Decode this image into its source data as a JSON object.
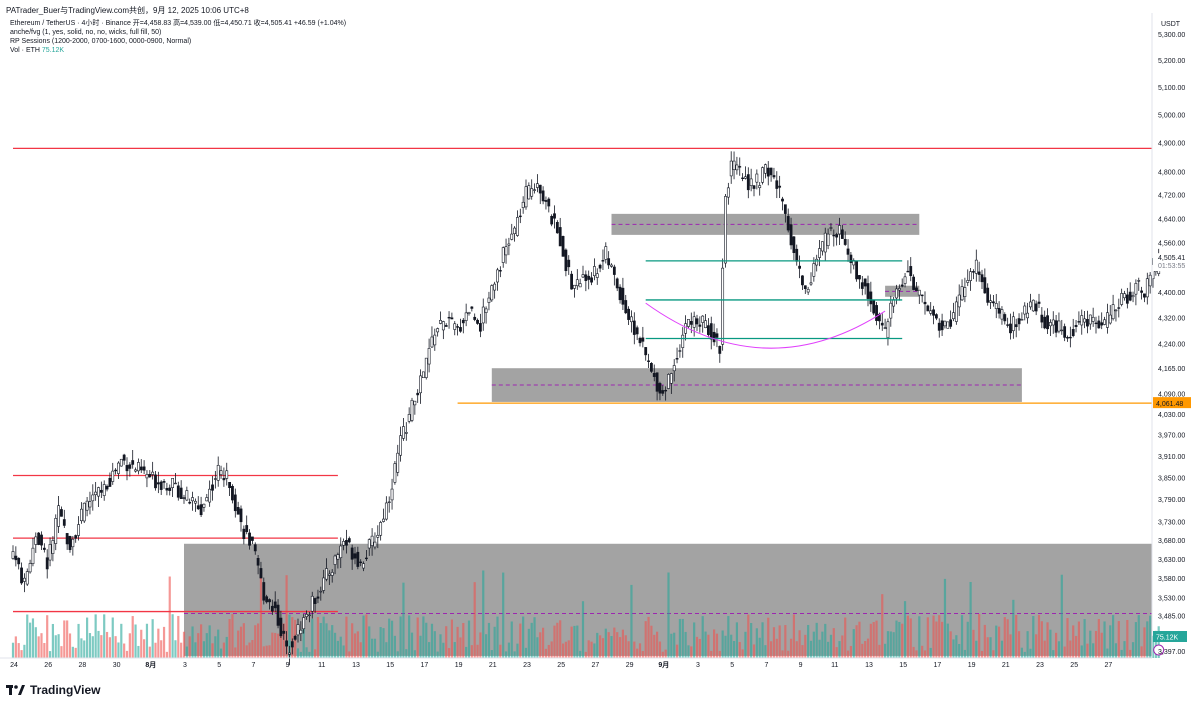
{
  "header": {
    "title": "PATrader_Buer与TradingView.com共创，9月 12, 2025 10:06 UTC+8"
  },
  "legend": {
    "symbol_line": "Ethereum / TetherUS · 4小时 · Binance  开=4,458.83  高=4,539.00  低=4,450.71  收=4,505.41  +46.59 (+1.04%)",
    "indicator1": "anche/fvg (1, yes, solid, no, no, wicks, full fill, 50)",
    "indicator2": "RP Sessions (1200-2000, 0700-1600, 0000-0900, Normal)",
    "volume_label": "Vol · ETH",
    "volume_value": "75.12K"
  },
  "axis": {
    "currency": "USDT",
    "price_ticks": [
      "5,300.00",
      "5,200.00",
      "5,100.00",
      "5,000.00",
      "4,900.00",
      "4,800.00",
      "4,720.00",
      "4,640.00",
      "4,560.00",
      "4,400.00",
      "4,320.00",
      "4,240.00",
      "4,165.00",
      "4,090.00",
      "4,030.00",
      "3,970.00",
      "3,910.00",
      "3,850.00",
      "3,790.00",
      "3,730.00",
      "3,680.00",
      "3,630.00",
      "3,580.00",
      "3,530.00",
      "3,485.00",
      "3,441.00",
      "3,397.00"
    ],
    "last_price": "4,505.41",
    "countdown": "01:53:55",
    "level_label": "4,061.48",
    "volume_badge": "75.12K",
    "date_ticks": [
      "24",
      "26",
      "28",
      "30",
      "8月",
      "3",
      "5",
      "7",
      "9",
      "11",
      "13",
      "15",
      "17",
      "19",
      "21",
      "23",
      "25",
      "27",
      "29",
      "9月",
      "3",
      "5",
      "7",
      "9",
      "11",
      "13",
      "15",
      "17",
      "19",
      "21",
      "23",
      "25",
      "27"
    ]
  },
  "footer": {
    "brand": "TradingView"
  },
  "colors": {
    "up": "#26a69a",
    "down": "#ef5350",
    "zone": "#9e9e9e",
    "resistance": "#f23645",
    "support": "#ff9800",
    "arc": "#e040fb",
    "range": "#089981",
    "mid_dash": "#9c27b0"
  },
  "chart_data": {
    "type": "candlestick",
    "x_unit": "4h candles",
    "x_start": "2025-07-23",
    "y_scale": "log",
    "ylim": [
      3380,
      5380
    ],
    "close_path": [
      [
        0,
        3650
      ],
      [
        4,
        3560
      ],
      [
        8,
        3700
      ],
      [
        12,
        3620
      ],
      [
        16,
        3750
      ],
      [
        20,
        3670
      ],
      [
        26,
        3780
      ],
      [
        32,
        3820
      ],
      [
        38,
        3900
      ],
      [
        44,
        3870
      ],
      [
        50,
        3840
      ],
      [
        56,
        3830
      ],
      [
        60,
        3800
      ],
      [
        66,
        3760
      ],
      [
        72,
        3870
      ],
      [
        76,
        3840
      ],
      [
        80,
        3720
      ],
      [
        84,
        3660
      ],
      [
        88,
        3540
      ],
      [
        92,
        3500
      ],
      [
        96,
        3400
      ],
      [
        100,
        3450
      ],
      [
        104,
        3500
      ],
      [
        108,
        3560
      ],
      [
        112,
        3610
      ],
      [
        116,
        3680
      ],
      [
        122,
        3620
      ],
      [
        128,
        3700
      ],
      [
        132,
        3800
      ],
      [
        136,
        3950
      ],
      [
        140,
        4050
      ],
      [
        144,
        4150
      ],
      [
        148,
        4280
      ],
      [
        152,
        4310
      ],
      [
        156,
        4280
      ],
      [
        160,
        4350
      ],
      [
        164,
        4300
      ],
      [
        168,
        4420
      ],
      [
        172,
        4520
      ],
      [
        176,
        4600
      ],
      [
        180,
        4720
      ],
      [
        184,
        4770
      ],
      [
        188,
        4660
      ],
      [
        192,
        4570
      ],
      [
        196,
        4420
      ],
      [
        200,
        4440
      ],
      [
        204,
        4460
      ],
      [
        208,
        4520
      ],
      [
        212,
        4420
      ],
      [
        216,
        4320
      ],
      [
        220,
        4250
      ],
      [
        224,
        4150
      ],
      [
        228,
        4090
      ],
      [
        232,
        4180
      ],
      [
        236,
        4300
      ],
      [
        240,
        4310
      ],
      [
        244,
        4290
      ],
      [
        248,
        4230
      ],
      [
        250,
        4720
      ],
      [
        252,
        4820
      ],
      [
        256,
        4780
      ],
      [
        260,
        4750
      ],
      [
        264,
        4800
      ],
      [
        266,
        4790
      ],
      [
        270,
        4700
      ],
      [
        274,
        4530
      ],
      [
        278,
        4400
      ],
      [
        282,
        4500
      ],
      [
        286,
        4590
      ],
      [
        290,
        4610
      ],
      [
        294,
        4500
      ],
      [
        298,
        4430
      ],
      [
        302,
        4350
      ],
      [
        306,
        4270
      ],
      [
        310,
        4410
      ],
      [
        314,
        4470
      ],
      [
        318,
        4380
      ],
      [
        322,
        4340
      ],
      [
        326,
        4290
      ],
      [
        330,
        4320
      ],
      [
        334,
        4430
      ],
      [
        338,
        4480
      ],
      [
        342,
        4380
      ],
      [
        346,
        4330
      ],
      [
        350,
        4290
      ],
      [
        354,
        4320
      ],
      [
        358,
        4370
      ],
      [
        362,
        4310
      ],
      [
        366,
        4290
      ],
      [
        370,
        4270
      ],
      [
        374,
        4300
      ],
      [
        378,
        4320
      ],
      [
        382,
        4290
      ],
      [
        386,
        4340
      ],
      [
        390,
        4380
      ],
      [
        394,
        4420
      ],
      [
        397,
        4400
      ],
      [
        400,
        4480
      ],
      [
        402,
        4505.41
      ]
    ],
    "last_candle": {
      "open": 4458.83,
      "high": 4539.0,
      "low": 4450.71,
      "close": 4505.41,
      "change": 46.59,
      "change_pct": 1.04
    },
    "horizontal_levels": [
      {
        "price": 4880,
        "color": "resistance",
        "from_day": "2025-07-23",
        "to": "right"
      },
      {
        "price": 3855,
        "color": "resistance",
        "from_day": "2025-07-23",
        "to_day": "2025-08-11"
      },
      {
        "price": 3685,
        "color": "resistance",
        "from_day": "2025-07-23",
        "to_day": "2025-08-11"
      },
      {
        "price": 3495,
        "color": "resistance",
        "from_day": "2025-07-23",
        "to_day": "2025-08-11"
      },
      {
        "price": 4061.48,
        "color": "support",
        "from_day": "2025-08-18",
        "to": "right"
      }
    ],
    "zones": [
      {
        "top": 4655,
        "bottom": 4585,
        "mid": 4620,
        "from_day": "2025-08-27",
        "to_day": "2025-09-14"
      },
      {
        "top": 4420,
        "bottom": 4385,
        "mid": 4402,
        "from_day": "2025-09-12",
        "to_day": "2025-09-14"
      },
      {
        "top": 4165,
        "bottom": 4065,
        "mid": 4115,
        "from_day": "2025-08-20",
        "to_day": "2025-09-20"
      },
      {
        "top": 3670,
        "bottom": 3385,
        "mid": 3490,
        "from_day": "2025-08-02",
        "to": "right"
      }
    ],
    "range_lines": [
      4500,
      4375,
      4255
    ],
    "arc": {
      "from_day": "2025-08-29",
      "to_day": "2025-09-12",
      "bottom_price": 4225,
      "end_price": 4340
    },
    "volume": {
      "unit": "ETH",
      "last": "75.12K"
    }
  }
}
